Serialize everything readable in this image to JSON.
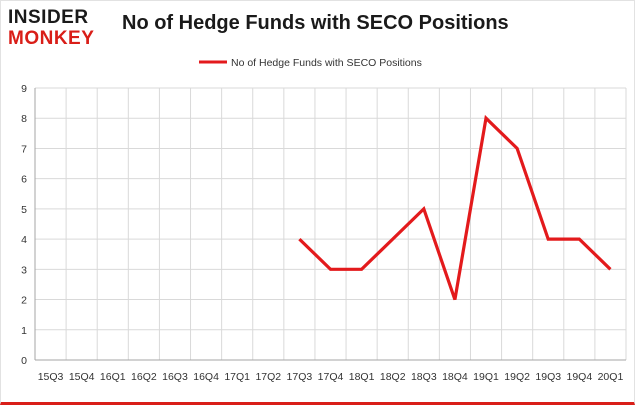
{
  "logo": {
    "top": "INSIDER",
    "bottom": "MONKEY"
  },
  "colors": {
    "series": "#e31a1c",
    "grid": "#d9d9d9",
    "brand_red": "#d91e18"
  },
  "chart_data": {
    "type": "line",
    "title": "No of Hedge Funds with SECO Positions",
    "xlabel": "",
    "ylabel": "",
    "categories": [
      "15Q3",
      "15Q4",
      "16Q1",
      "16Q2",
      "16Q3",
      "16Q4",
      "17Q1",
      "17Q2",
      "17Q3",
      "17Q4",
      "18Q1",
      "18Q2",
      "18Q3",
      "18Q4",
      "19Q1",
      "19Q2",
      "19Q3",
      "19Q4",
      "20Q1"
    ],
    "series": [
      {
        "name": "No of Hedge Funds with SECO Positions",
        "values": [
          null,
          null,
          null,
          null,
          null,
          null,
          null,
          null,
          4,
          3,
          3,
          4,
          5,
          2,
          8,
          7,
          4,
          4,
          3
        ]
      }
    ],
    "ylim": [
      0,
      9
    ],
    "yticks": [
      "0",
      "1",
      "2",
      "3",
      "4",
      "5",
      "6",
      "7",
      "8",
      "9"
    ],
    "grid": true,
    "legend": "top-center"
  }
}
